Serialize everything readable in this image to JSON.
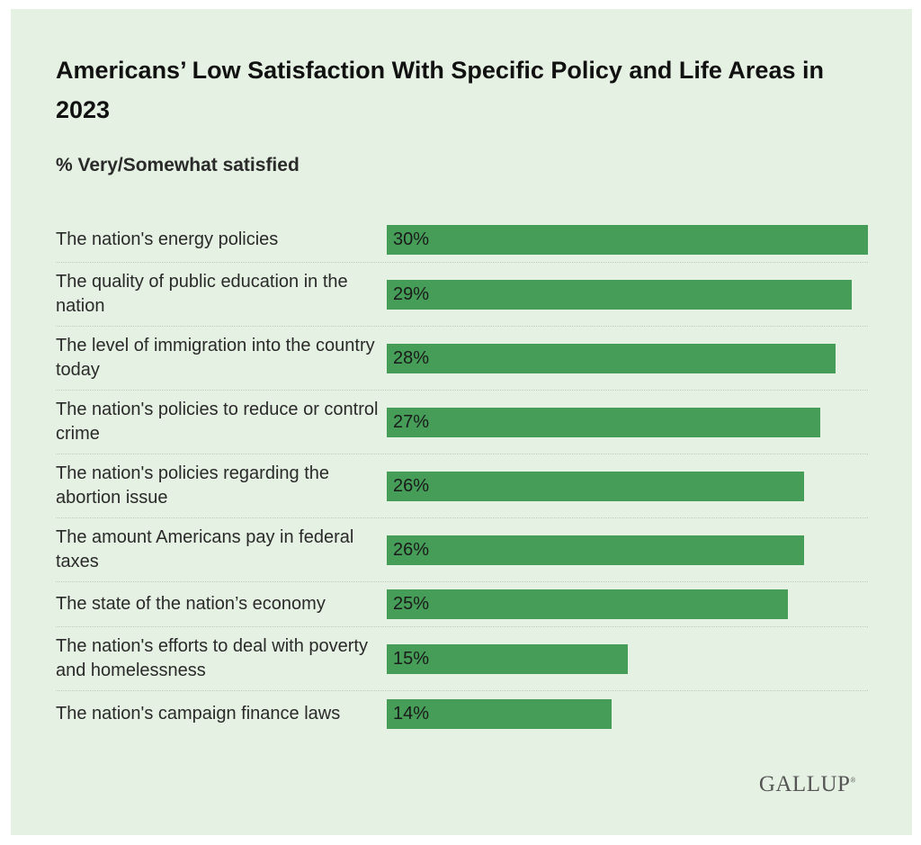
{
  "chart_data": {
    "type": "bar",
    "orientation": "horizontal",
    "title": "Americans’ Low Satisfaction With Specific Policy and Life Areas in 2023",
    "subtitle": "% Very/Somewhat satisfied",
    "categories": [
      "The nation's energy policies",
      "The quality of public education in the nation",
      "The level of immigration into the country today",
      "The nation's policies to reduce or control crime",
      "The nation's policies regarding the abortion issue",
      "The amount Americans pay in federal taxes",
      "The state of the nation’s economy",
      "The nation's efforts to deal with poverty and homelessness",
      "The nation's campaign finance laws"
    ],
    "values": [
      30,
      29,
      28,
      27,
      26,
      26,
      25,
      15,
      14
    ],
    "data_labels": [
      "30%",
      "29%",
      "28%",
      "27%",
      "26%",
      "26%",
      "25%",
      "15%",
      "14%"
    ],
    "xlim": [
      0,
      30
    ],
    "grid": false,
    "bar_color": "#459d58",
    "background_color": "#e5f1e2"
  },
  "logo": "GALLUP"
}
